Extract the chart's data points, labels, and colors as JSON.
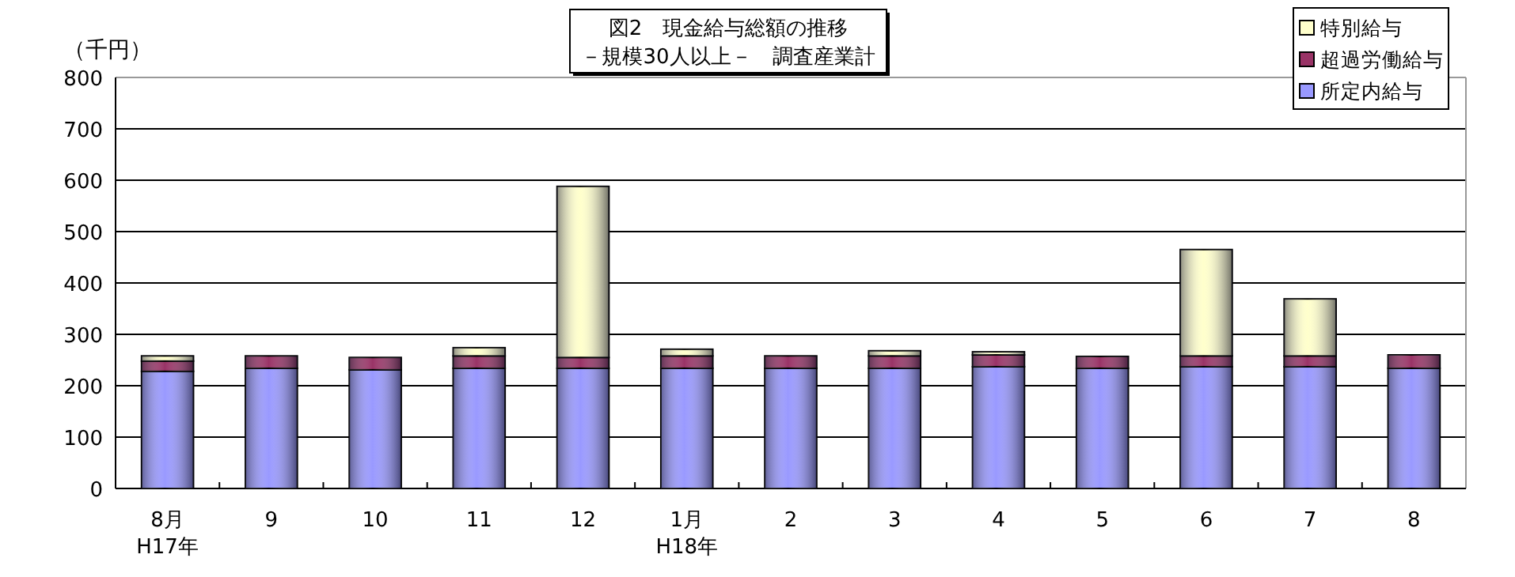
{
  "chart_data": {
    "type": "bar",
    "stacked": true,
    "title": "図2　現金給与総額の推移",
    "subtitle": "－規模30人以上－　調査産業計",
    "ylabel": "（千円）",
    "categories": [
      "8月\nH17年",
      "9",
      "10",
      "11",
      "12",
      "1月\nH18年",
      "2",
      "3",
      "4",
      "5",
      "6",
      "7",
      "8"
    ],
    "series": [
      {
        "name": "所定内給与",
        "color": "#9999ff",
        "values": [
          228,
          234,
          231,
          234,
          234,
          234,
          234,
          234,
          237,
          234,
          237,
          237,
          234
        ]
      },
      {
        "name": "超過労働給与",
        "color": "#993366",
        "values": [
          20,
          24,
          24,
          24,
          21,
          24,
          24,
          24,
          23,
          23,
          21,
          21,
          26
        ]
      },
      {
        "name": "特別給与",
        "color": "#ffffcc",
        "values": [
          10,
          0,
          0,
          16,
          333,
          13,
          0,
          10,
          6,
          0,
          207,
          111,
          0
        ]
      }
    ],
    "ylim": [
      0,
      800
    ],
    "yticks": [
      0,
      100,
      200,
      300,
      400,
      500,
      600,
      700,
      800
    ],
    "grid": "y",
    "legend": "top right"
  }
}
